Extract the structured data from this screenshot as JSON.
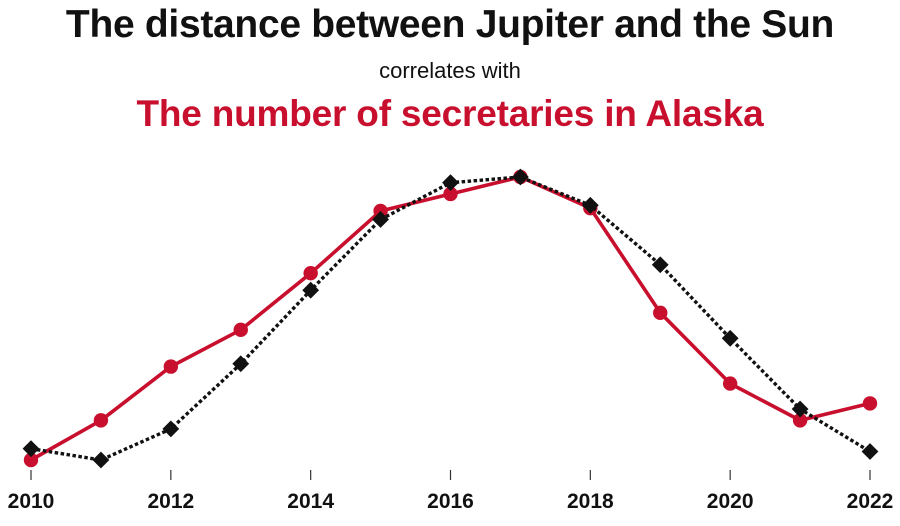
{
  "chart_data": {
    "type": "line",
    "title": "The distance between Jupiter and the Sun",
    "subtitle": "correlates with",
    "title2": "The number of secretaries in Alaska",
    "x": [
      2010,
      2011,
      2012,
      2013,
      2014,
      2015,
      2016,
      2017,
      2018,
      2019,
      2020,
      2021,
      2022
    ],
    "x_tick_labels": [
      "2010",
      "2012",
      "2014",
      "2016",
      "2018",
      "2020",
      "2022"
    ],
    "xlim": [
      2010,
      2022
    ],
    "y_axis_labels_shown": false,
    "grid": false,
    "series": [
      {
        "color": "#c8102e",
        "style": "solid",
        "marker": "circle",
        "values": [
          0.0,
          0.14,
          0.33,
          0.46,
          0.66,
          0.88,
          0.94,
          1.0,
          0.89,
          0.52,
          0.27,
          0.14,
          0.2
        ]
      },
      {
        "color": "#111111",
        "style": "dotted",
        "marker": "diamond",
        "values": [
          0.04,
          0.0,
          0.11,
          0.34,
          0.6,
          0.85,
          0.98,
          1.0,
          0.9,
          0.69,
          0.43,
          0.18,
          0.03
        ]
      }
    ]
  }
}
